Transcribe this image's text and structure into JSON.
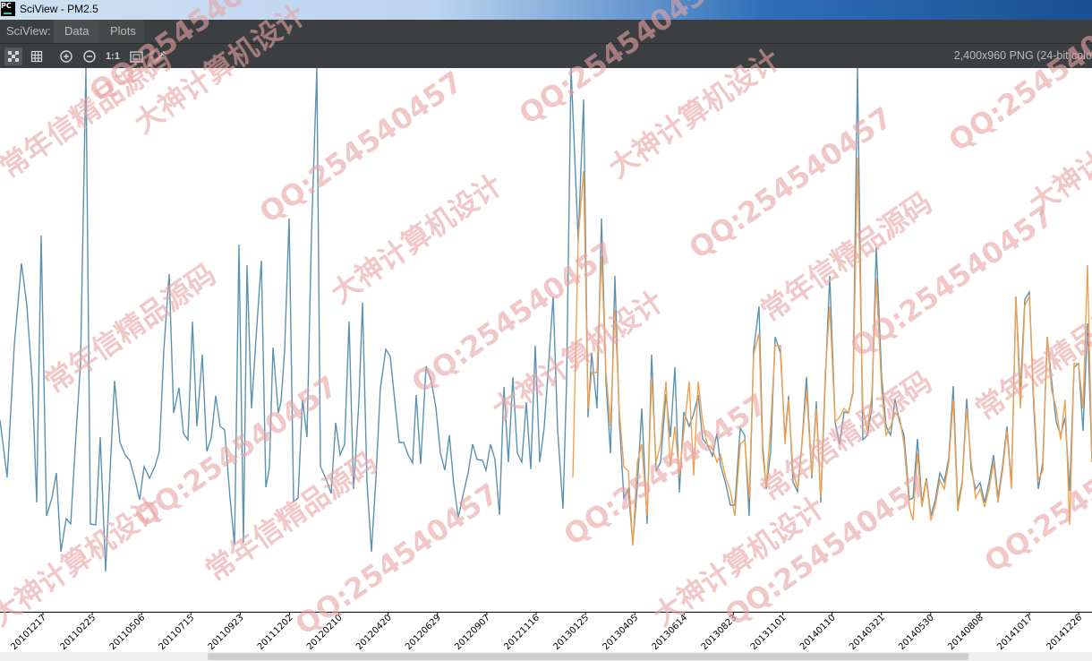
{
  "window": {
    "title": "SciView - PM2.5",
    "icon": "pycharm-icon"
  },
  "menu": {
    "label": "SciView:",
    "data_tab": "Data",
    "plots_tab": "Plots"
  },
  "toolbar": {
    "buttons": [
      "grid-toggle-icon",
      "table-icon",
      "zoom-in-icon",
      "zoom-out-icon",
      "actual-size-icon",
      "fit-screen-icon",
      "color-picker-icon"
    ],
    "actual_size_label": "1:1",
    "image_info": "2,400x960 PNG (24-bit colo"
  },
  "colors": {
    "actual": "#5b92b0",
    "predicted": "#f0a050",
    "toolbar_bg": "#3c3f41"
  },
  "watermark": {
    "texts": [
      "QQ:254540457",
      "大神计算机设计",
      "常年信精品源码"
    ],
    "color": "#e8a3a3"
  },
  "chart_data": {
    "type": "line",
    "series": [],
    "tick_labels": [
      "20101217",
      "20110225",
      "20110506",
      "20110715",
      "20110923",
      "20111202",
      "20120210",
      "20120420",
      "20120629",
      "20120907",
      "20121116",
      "20130125",
      "20130405",
      "20130614",
      "20130823",
      "20131101",
      "20140110",
      "20140321",
      "20140530",
      "20140808",
      "20141017",
      "20141226"
    ]
  }
}
